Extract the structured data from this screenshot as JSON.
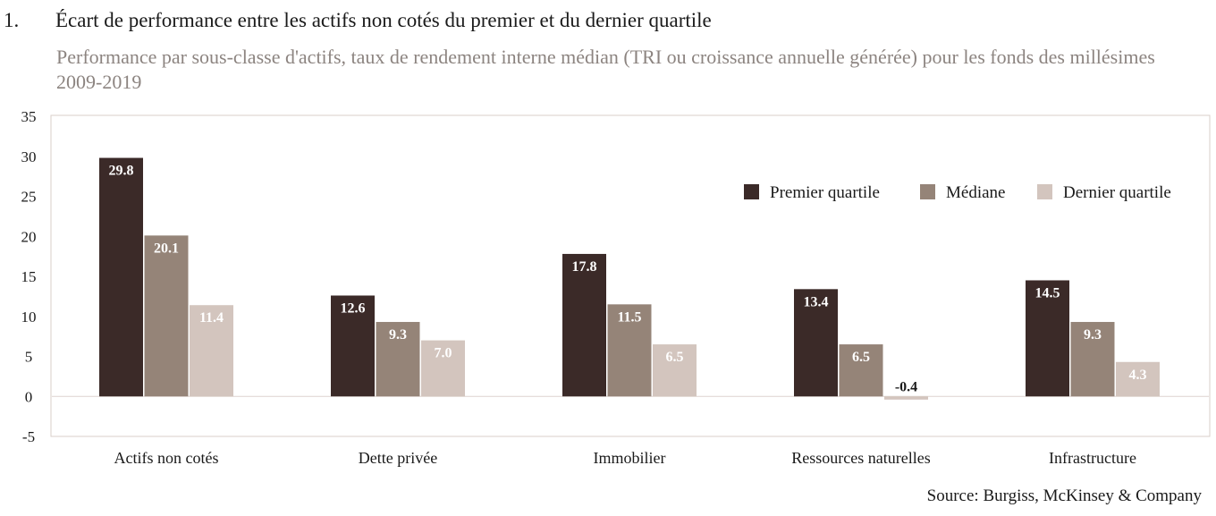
{
  "figure": {
    "number": "1.",
    "source": "Source: Burgiss, McKinsey & Company"
  },
  "chart_data": {
    "type": "bar",
    "title": "Écart de performance entre les actifs non cotés du premier et du dernier quartile",
    "subtitle": "Performance par sous-classe d'actifs, taux de rendement interne médian (TRI ou croissance annuelle générée) pour les fonds des millésimes 2009-2019",
    "xlabel": "",
    "ylabel": "",
    "ylim": [
      -5,
      35
    ],
    "yticks": [
      35,
      30,
      25,
      20,
      15,
      10,
      5,
      0,
      -5
    ],
    "ytick_labels": [
      "35",
      "30",
      "25",
      "20",
      "15",
      "10",
      "5",
      "0",
      "-5"
    ],
    "categories": [
      "Actifs non cotés",
      "Dette privée",
      "Immobilier",
      "Ressources naturelles",
      "Infrastructure"
    ],
    "series": [
      {
        "name": "Premier quartile",
        "color": "#3b2a28",
        "label_color": "#ffffff",
        "values": [
          29.8,
          12.6,
          17.8,
          13.4,
          14.5
        ],
        "labels": [
          "29.8",
          "12.6",
          "17.8",
          "13.4",
          "14.5"
        ]
      },
      {
        "name": "Médiane",
        "color": "#958478",
        "label_color": "#ffffff",
        "values": [
          20.1,
          9.3,
          11.5,
          6.5,
          9.3
        ],
        "labels": [
          "20.1",
          "9.3",
          "11.5",
          "6.5",
          "9.3"
        ]
      },
      {
        "name": "Dernier quartile",
        "color": "#d3c5be",
        "label_color": "#ffffff",
        "values": [
          11.4,
          7.0,
          6.5,
          -0.4,
          4.3
        ],
        "labels": [
          "11.4",
          "7.0",
          "6.5",
          "-0.4",
          "4.3"
        ]
      }
    ],
    "legend_position": "top-right",
    "grid": false
  }
}
